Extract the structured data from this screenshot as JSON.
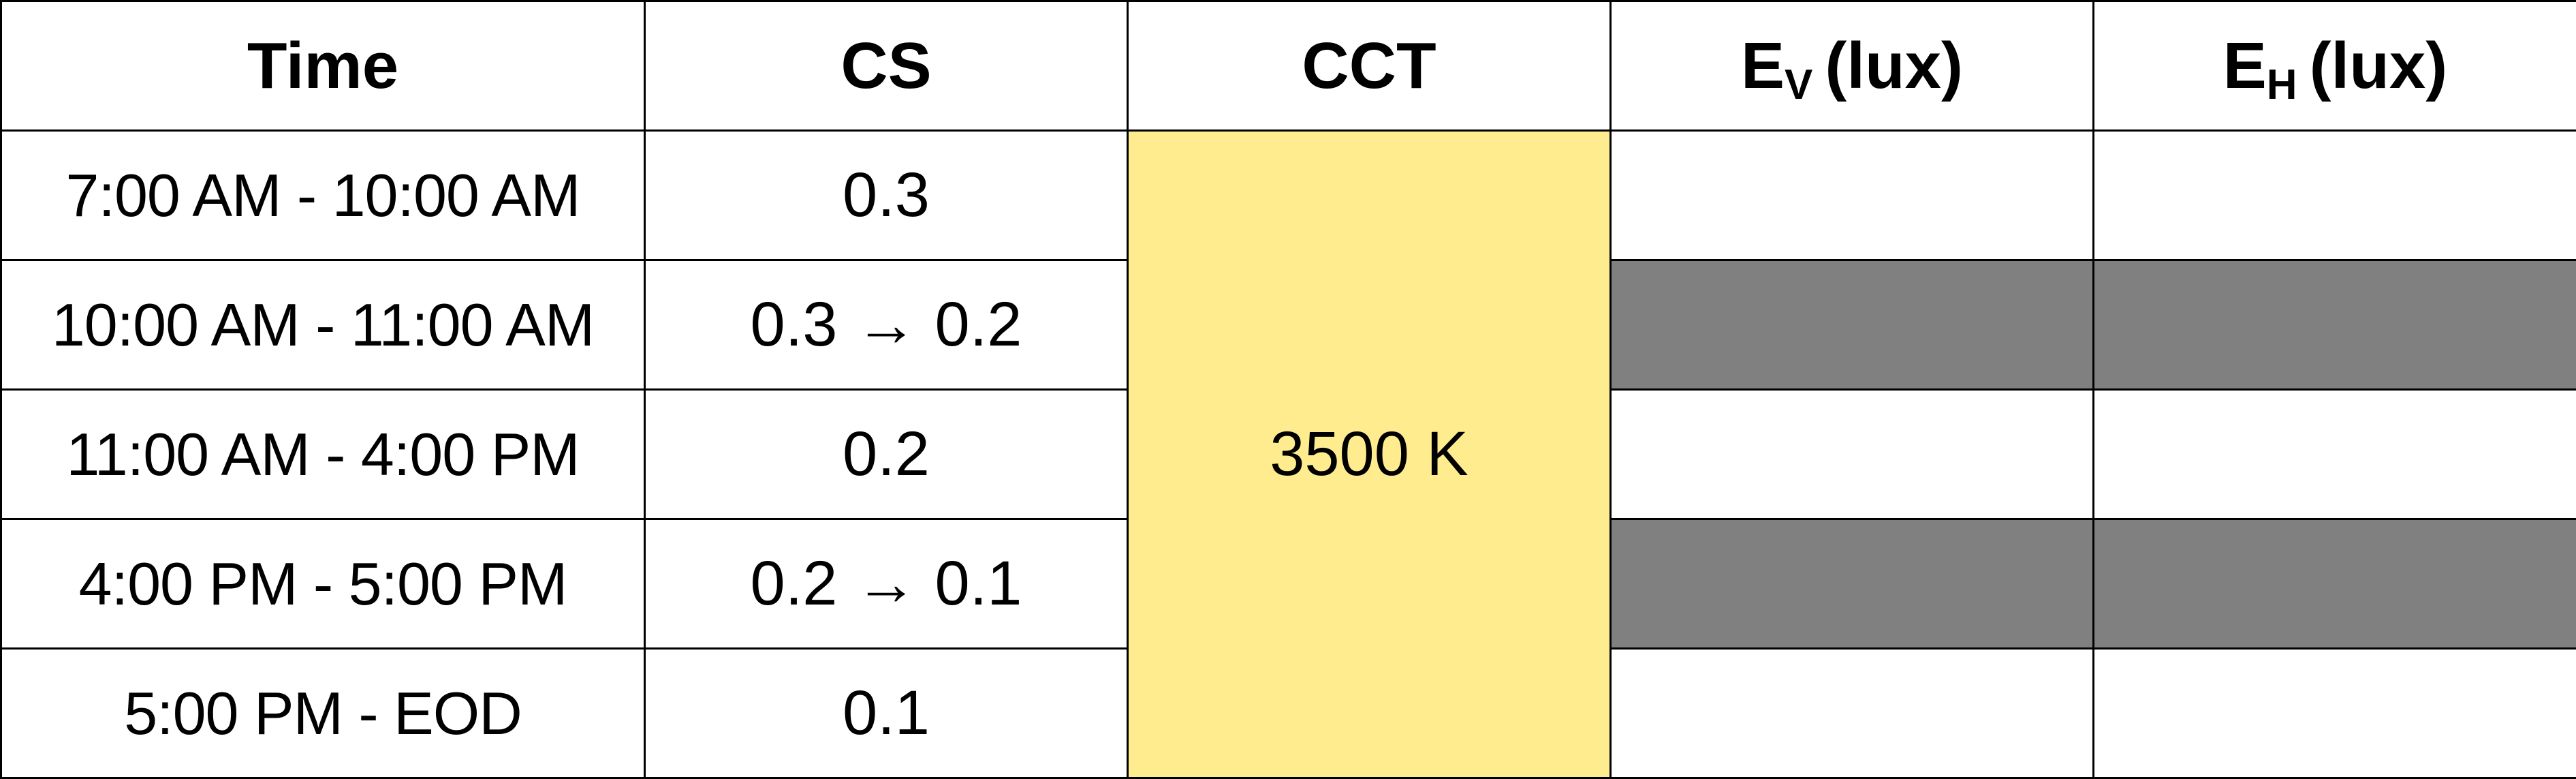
{
  "table": {
    "headers": {
      "time": "Time",
      "cs": "CS",
      "cct": "CCT",
      "ev_letter": "E",
      "ev_sub": "V",
      "ev_unit": "(lux)",
      "eh_letter": "E",
      "eh_sub": "H",
      "eh_unit": "(lux)"
    },
    "rows": [
      {
        "time": "7:00 AM - 10:00 AM",
        "cs": "0.3",
        "ev": "",
        "eh": "",
        "shaded": false
      },
      {
        "time": "10:00 AM - 11:00 AM",
        "cs": "0.3 → 0.2",
        "ev": "",
        "eh": "",
        "shaded": true
      },
      {
        "time": "11:00 AM - 4:00 PM",
        "cs": "0.2",
        "ev": "",
        "eh": "",
        "shaded": false
      },
      {
        "time": "4:00 PM - 5:00 PM",
        "cs": "0.2 → 0.1",
        "ev": "",
        "eh": "",
        "shaded": true
      },
      {
        "time": "5:00 PM - EOD",
        "cs": "0.1",
        "ev": "",
        "eh": "",
        "shaded": false
      }
    ],
    "cct_value": "3500 K",
    "colors": {
      "cct_fill": "#FFEC8F",
      "shaded_fill": "#808080",
      "border": "#000000"
    }
  }
}
